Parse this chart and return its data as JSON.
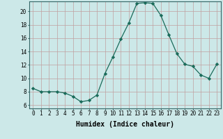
{
  "x": [
    0,
    1,
    2,
    3,
    4,
    5,
    6,
    7,
    8,
    9,
    10,
    11,
    12,
    13,
    14,
    15,
    16,
    17,
    18,
    19,
    20,
    21,
    22,
    23
  ],
  "y": [
    8.5,
    8.0,
    8.0,
    8.0,
    7.8,
    7.3,
    6.5,
    6.7,
    7.5,
    10.7,
    13.2,
    15.9,
    18.3,
    21.2,
    21.3,
    21.2,
    19.4,
    16.5,
    13.7,
    12.1,
    11.8,
    10.5,
    10.0,
    12.1
  ],
  "line_color": "#1a6b5a",
  "marker": "D",
  "marker_size": 2.2,
  "bg_color": "#cce8e8",
  "grid_color": "#c0a0a0",
  "xlabel": "Humidex (Indice chaleur)",
  "ylabel": "",
  "title": "",
  "xlim": [
    -0.5,
    23.5
  ],
  "ylim": [
    5.5,
    21.5
  ],
  "yticks": [
    6,
    8,
    10,
    12,
    14,
    16,
    18,
    20
  ],
  "xticks": [
    0,
    1,
    2,
    3,
    4,
    5,
    6,
    7,
    8,
    9,
    10,
    11,
    12,
    13,
    14,
    15,
    16,
    17,
    18,
    19,
    20,
    21,
    22,
    23
  ],
  "tick_fontsize": 5.5,
  "label_fontsize": 7.0
}
